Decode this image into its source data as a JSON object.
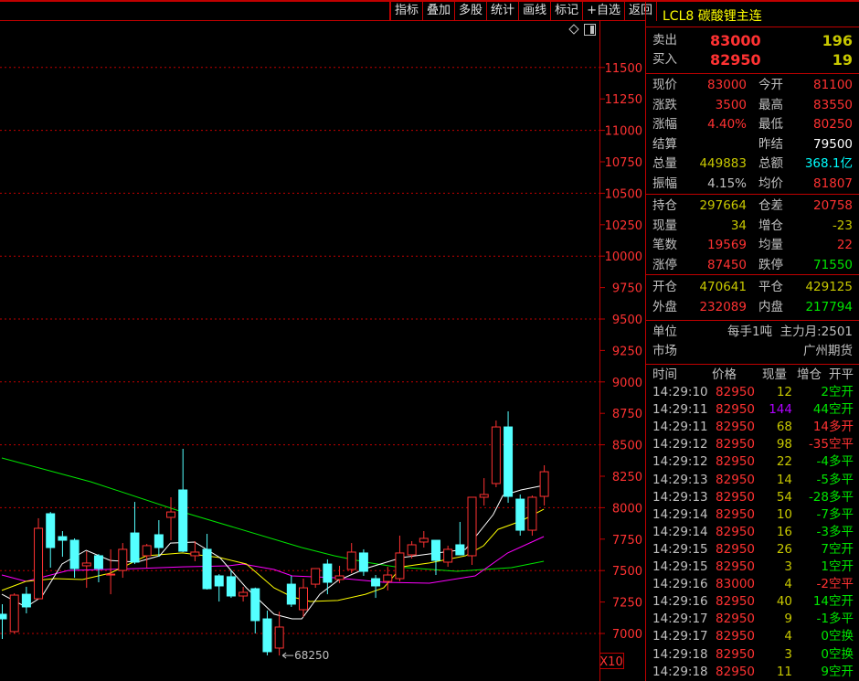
{
  "toolbar": {
    "buttons": [
      "指标",
      "叠加",
      "多股",
      "统计",
      "画线",
      "标记",
      "+自选",
      "返回"
    ]
  },
  "chart_controls": {
    "icons": [
      "diamond-icon",
      "panel-toggle-icon"
    ]
  },
  "colors": {
    "up": "#ff3232",
    "down": "#54ffff",
    "ma5": "#ffffff",
    "ma10": "#ffff00",
    "ma20": "#ff00ff",
    "ma60": "#00e600",
    "grid": "#c00000"
  },
  "chart_data": {
    "type": "candlestick",
    "ylim": [
      6900,
      11700
    ],
    "y_ticks": [
      7000,
      7250,
      7500,
      7750,
      8000,
      8250,
      8500,
      8750,
      9000,
      9250,
      9500,
      9750,
      10000,
      10250,
      10500,
      10750,
      11000,
      11250,
      11500
    ],
    "grid_lines": [
      7000,
      7500,
      8000,
      8500,
      9000,
      9500,
      10000,
      10500,
      11000,
      11500
    ],
    "scale_label": "X10",
    "low_marker": {
      "label": "68250",
      "candle": 23
    },
    "candles": [
      [
        7153,
        7233,
        6956,
        7116
      ],
      [
        7015,
        7320,
        7000,
        7305
      ],
      [
        7312,
        7371,
        7160,
        7211
      ],
      [
        7276,
        7916,
        7270,
        7836
      ],
      [
        7952,
        7966,
        7523,
        7683
      ],
      [
        7770,
        7814,
        7610,
        7741
      ],
      [
        7741,
        7756,
        7443,
        7516
      ],
      [
        7538,
        7654,
        7363,
        7560
      ],
      [
        7618,
        7632,
        7407,
        7516
      ],
      [
        7465,
        7669,
        7312,
        7472
      ],
      [
        7501,
        7719,
        7443,
        7669
      ],
      [
        7799,
        8046,
        7552,
        7567
      ],
      [
        7618,
        7712,
        7523,
        7698
      ],
      [
        7785,
        7901,
        7610,
        7683
      ],
      [
        7923,
        8083,
        7741,
        7966
      ],
      [
        8141,
        8468,
        7647,
        7654
      ],
      [
        7618,
        7734,
        7574,
        7647
      ],
      [
        7669,
        7792,
        7349,
        7356
      ],
      [
        7458,
        7472,
        7254,
        7378
      ],
      [
        7451,
        7501,
        7283,
        7298
      ],
      [
        7298,
        7371,
        7254,
        7327
      ],
      [
        7356,
        7365,
        7000,
        7102
      ],
      [
        7116,
        7182,
        6826,
        6855
      ],
      [
        6884,
        7174,
        6825,
        7051
      ],
      [
        7392,
        7458,
        7211,
        7233
      ],
      [
        7189,
        7436,
        7131,
        7363
      ],
      [
        7392,
        7516,
        7363,
        7516
      ],
      [
        7552,
        7589,
        7312,
        7407
      ],
      [
        7429,
        7538,
        7400,
        7458
      ],
      [
        7509,
        7719,
        7480,
        7647
      ],
      [
        7640,
        7669,
        7458,
        7494
      ],
      [
        7436,
        7465,
        7283,
        7378
      ],
      [
        7414,
        7530,
        7342,
        7465
      ],
      [
        7436,
        7778,
        7414,
        7640
      ],
      [
        7625,
        7734,
        7596,
        7705
      ],
      [
        7727,
        7814,
        7683,
        7756
      ],
      [
        7741,
        7741,
        7465,
        7581
      ],
      [
        7567,
        7698,
        7530,
        7669
      ],
      [
        7705,
        7887,
        7625,
        7625
      ],
      [
        7618,
        8083,
        7545,
        8083
      ],
      [
        8083,
        8235,
        8017,
        8105
      ],
      [
        8192,
        8693,
        8163,
        8642
      ],
      [
        8642,
        8766,
        8039,
        8090
      ],
      [
        8068,
        8105,
        7778,
        7821
      ],
      [
        7821,
        8097,
        7778,
        8083
      ],
      [
        8090,
        8337,
        8017,
        8286
      ]
    ],
    "ma_lines": {
      "ma5": [
        [
          0,
          7312
        ],
        [
          2,
          7211
        ],
        [
          3.3,
          7291
        ],
        [
          5,
          7552
        ],
        [
          7,
          7661
        ],
        [
          9,
          7581
        ],
        [
          11.2,
          7567
        ],
        [
          13.1,
          7618
        ],
        [
          14,
          7719
        ],
        [
          16,
          7727
        ],
        [
          18.1,
          7603
        ],
        [
          20.3,
          7363
        ],
        [
          22.6,
          7153
        ],
        [
          24.1,
          7116
        ],
        [
          24.9,
          7116
        ],
        [
          26.4,
          7312
        ],
        [
          27.9,
          7421
        ],
        [
          30.2,
          7516
        ],
        [
          33.2,
          7603
        ],
        [
          35.5,
          7632
        ],
        [
          38.5,
          7669
        ],
        [
          40.8,
          7945
        ],
        [
          41.6,
          8097
        ],
        [
          43.1,
          8141
        ],
        [
          45,
          8177
        ]
      ],
      "ma10": [
        [
          0,
          7342
        ],
        [
          2,
          7414
        ],
        [
          4.4,
          7436
        ],
        [
          6.7,
          7429
        ],
        [
          9,
          7480
        ],
        [
          12,
          7618
        ],
        [
          15,
          7640
        ],
        [
          18.1,
          7603
        ],
        [
          20.3,
          7552
        ],
        [
          22.6,
          7363
        ],
        [
          24.1,
          7291
        ],
        [
          25.6,
          7254
        ],
        [
          27.9,
          7262
        ],
        [
          30.2,
          7312
        ],
        [
          31.7,
          7363
        ],
        [
          33.2,
          7530
        ],
        [
          35.5,
          7560
        ],
        [
          38.5,
          7618
        ],
        [
          40,
          7698
        ],
        [
          41.2,
          7828
        ],
        [
          43.1,
          7894
        ],
        [
          45,
          7988
        ]
      ],
      "ma20": [
        [
          0,
          7465
        ],
        [
          2,
          7414
        ],
        [
          5.5,
          7501
        ],
        [
          11.2,
          7516
        ],
        [
          15,
          7530
        ],
        [
          18.8,
          7538
        ],
        [
          20,
          7552
        ],
        [
          22.6,
          7509
        ],
        [
          24.1,
          7458
        ],
        [
          27.6,
          7443
        ],
        [
          31.7,
          7407
        ],
        [
          35.5,
          7400
        ],
        [
          39.3,
          7458
        ],
        [
          42,
          7640
        ],
        [
          45,
          7770
        ]
      ],
      "ma60": [
        [
          0,
          8395
        ],
        [
          7.4,
          8206
        ],
        [
          15,
          7966
        ],
        [
          24.9,
          7683
        ],
        [
          27.6,
          7618
        ],
        [
          30.2,
          7567
        ],
        [
          32.7,
          7530
        ],
        [
          37.8,
          7494
        ],
        [
          40,
          7509
        ],
        [
          42.3,
          7523
        ],
        [
          45,
          7574
        ]
      ]
    }
  },
  "quote": {
    "title": "LCL8 碳酸锂主连",
    "ask": {
      "label": "卖出",
      "price": "83000",
      "volume": "196"
    },
    "bid": {
      "label": "买入",
      "price": "82950",
      "volume": "19"
    },
    "stats1": [
      [
        "现价",
        "83000",
        "今开",
        "81100"
      ],
      [
        "涨跌",
        "3500",
        "最高",
        "83550"
      ],
      [
        "涨幅",
        "4.40%",
        "最低",
        "80250"
      ],
      [
        "结算",
        "",
        "昨结",
        "79500"
      ],
      [
        "总量",
        "449883",
        "总额",
        "368.1亿"
      ],
      [
        "振幅",
        "4.15%",
        "均价",
        "81807"
      ]
    ],
    "stats2": [
      [
        "持仓",
        "297664",
        "仓差",
        "20758"
      ],
      [
        "现量",
        "34",
        "增仓",
        "-23"
      ],
      [
        "笔数",
        "19569",
        "均量",
        "22"
      ],
      [
        "涨停",
        "87450",
        "跌停",
        "71550"
      ]
    ],
    "stats3": [
      [
        "开仓",
        "470641",
        "平仓",
        "429125"
      ],
      [
        "外盘",
        "232089",
        "内盘",
        "217794"
      ]
    ],
    "info": {
      "unit_label": "单位",
      "unit_value": "每手1吨",
      "main_month": "主力月:2501",
      "market_label": "市场",
      "market_value": "广州期货"
    }
  },
  "ticks": {
    "headers": [
      "时间",
      "价格",
      "现量",
      "增仓",
      "开平"
    ],
    "rows": [
      [
        "14:29:10",
        "82950",
        "12",
        "2",
        "空开"
      ],
      [
        "14:29:11",
        "82950",
        "144",
        "44",
        "空开"
      ],
      [
        "14:29:11",
        "82950",
        "68",
        "14",
        "多开"
      ],
      [
        "14:29:12",
        "82950",
        "98",
        "-35",
        "空平"
      ],
      [
        "14:29:12",
        "82950",
        "22",
        "-4",
        "多平"
      ],
      [
        "14:29:13",
        "82950",
        "14",
        "-5",
        "多平"
      ],
      [
        "14:29:13",
        "82950",
        "54",
        "-28",
        "多平"
      ],
      [
        "14:29:14",
        "82950",
        "10",
        "-7",
        "多平"
      ],
      [
        "14:29:14",
        "82950",
        "16",
        "-3",
        "多平"
      ],
      [
        "14:29:15",
        "82950",
        "26",
        "7",
        "空开"
      ],
      [
        "14:29:15",
        "82950",
        "3",
        "1",
        "空开"
      ],
      [
        "14:29:16",
        "83000",
        "4",
        "-2",
        "空平"
      ],
      [
        "14:29:16",
        "82950",
        "40",
        "14",
        "空开"
      ],
      [
        "14:29:17",
        "82950",
        "9",
        "-1",
        "多平"
      ],
      [
        "14:29:17",
        "82950",
        "4",
        "0",
        "空换"
      ],
      [
        "14:29:18",
        "82950",
        "3",
        "0",
        "空换"
      ],
      [
        "14:29:18",
        "82950",
        "11",
        "9",
        "空开"
      ]
    ]
  }
}
